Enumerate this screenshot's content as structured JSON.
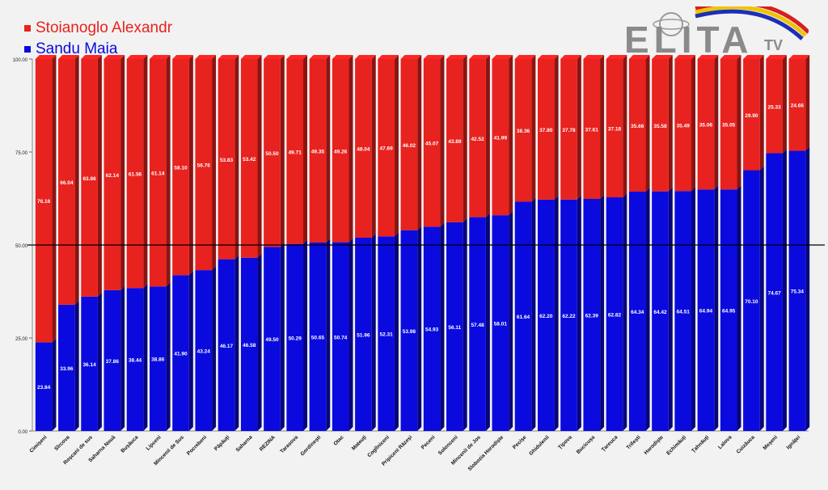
{
  "legend": [
    {
      "label": "Stoianoglo Alexandr",
      "color": "#e8221e"
    },
    {
      "label": "Sandu Maia",
      "color": "#0a0adf"
    }
  ],
  "logo": {
    "text": "ELITA",
    "suffix": "TV",
    "colors": [
      "#d81e1e",
      "#f0c400",
      "#1c2fb8"
    ]
  },
  "chart_data": {
    "type": "bar",
    "stacked": true,
    "ylim": [
      0,
      100
    ],
    "yticks": [
      "0.00",
      "25.00",
      "50.00",
      "75.00",
      "100.00"
    ],
    "reference_line": 50,
    "categories": [
      "Cimișeni",
      "Sîrcova",
      "Roșcani de sus",
      "Saharna Nouă",
      "Bușăuca",
      "Lipceni",
      "Mincenii de Sus",
      "Pocrebeni",
      "Păpăuți",
      "Saharna",
      "REZINA",
      "Tarasova",
      "Gordinești",
      "Otac",
      "Mateuți",
      "Cogîlniceni",
      "Pripiceni Răzeși",
      "Peceni",
      "Solonceni",
      "Mincenii de Jos",
      "Slobozia Horodiște",
      "Pecișe",
      "Ghidulenii",
      "Țipova",
      "Bucicușa",
      "Țareuca",
      "Trifești",
      "Horodiște",
      "Echimăuți",
      "Țahnăuți",
      "Lalova",
      "Cuizăuca",
      "Meșeni",
      "Ignăței"
    ],
    "series": [
      {
        "name": "Sandu Maia",
        "color": "#0a0adf",
        "values": [
          23.84,
          33.96,
          36.14,
          37.86,
          38.44,
          38.86,
          41.9,
          43.24,
          46.17,
          46.58,
          49.5,
          50.29,
          50.65,
          50.74,
          51.96,
          52.31,
          53.98,
          54.93,
          56.11,
          57.48,
          58.01,
          61.64,
          62.2,
          62.22,
          62.39,
          62.82,
          64.34,
          64.42,
          64.51,
          64.94,
          64.95,
          70.1,
          74.67,
          75.34
        ]
      },
      {
        "name": "Stoianoglo Alexandr",
        "color": "#e8221e",
        "values": [
          76.16,
          66.04,
          63.86,
          62.14,
          61.56,
          61.14,
          58.1,
          56.76,
          53.83,
          53.42,
          50.5,
          49.71,
          49.35,
          49.26,
          48.04,
          47.69,
          46.02,
          45.07,
          43.89,
          42.52,
          41.99,
          38.36,
          37.8,
          37.78,
          37.61,
          37.18,
          35.66,
          35.58,
          35.49,
          35.06,
          35.05,
          29.9,
          25.33,
          24.66
        ]
      }
    ]
  }
}
